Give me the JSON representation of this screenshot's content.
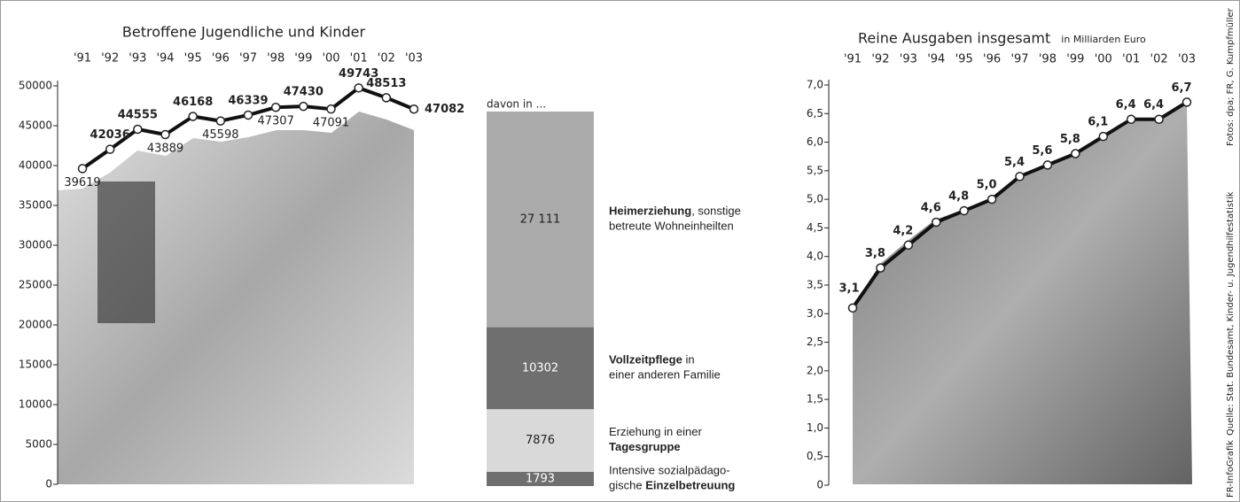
{
  "chart_data": [
    {
      "type": "line",
      "title": "Betroffene Jugendliche und Kinder",
      "categories": [
        "'91",
        "'92",
        "'93",
        "'94",
        "'95",
        "'96",
        "'97",
        "'98",
        "'99",
        "'00",
        "'01",
        "'02",
        "'03"
      ],
      "values": [
        39619,
        42036,
        44555,
        43889,
        46168,
        45598,
        46339,
        47307,
        47430,
        47091,
        49743,
        48513,
        47082
      ],
      "ylim": [
        0,
        50000
      ],
      "yticks": [
        0,
        5000,
        10000,
        15000,
        20000,
        25000,
        30000,
        35000,
        40000,
        45000,
        50000
      ],
      "color": "#111111"
    },
    {
      "type": "stacked-bar",
      "title": "davon in ...",
      "values": [
        27111,
        10302,
        7876,
        1793
      ],
      "value_labels": [
        "27 111",
        "10302",
        "7876",
        "1793"
      ],
      "colors": [
        "#ababab",
        "#6f6f6f",
        "#d9d9d9",
        "#6f6f6f"
      ],
      "labels": [
        [
          [
            {
              "t": "Heimerziehung",
              "b": true
            },
            {
              "t": ", sonstige",
              "b": false
            }
          ],
          [
            {
              "t": "betreute Wohneinheilten",
              "b": false
            }
          ]
        ],
        [
          [
            {
              "t": "Vollzeitpflege",
              "b": true
            },
            {
              "t": " in",
              "b": false
            }
          ],
          [
            {
              "t": "einer anderen Familie",
              "b": false
            }
          ]
        ],
        [
          [
            {
              "t": "Erziehung in einer",
              "b": false
            }
          ],
          [
            {
              "t": "Tagesgruppe",
              "b": true
            }
          ]
        ],
        [
          [
            {
              "t": "Intensive sozialpädago-",
              "b": false
            }
          ],
          [
            {
              "t": "gische ",
              "b": false
            },
            {
              "t": "Einzelbetreuung",
              "b": true
            }
          ]
        ]
      ]
    },
    {
      "type": "line",
      "title": "Reine Ausgaben insgesamt",
      "subtitle": "in Milliarden Euro",
      "categories": [
        "'91",
        "'92",
        "'93",
        "'94",
        "'95",
        "'96",
        "'97",
        "'98",
        "'99",
        "'00",
        "'01",
        "'02",
        "'03"
      ],
      "values": [
        3.1,
        3.8,
        4.2,
        4.6,
        4.8,
        5.0,
        5.4,
        5.6,
        5.8,
        6.1,
        6.4,
        6.4,
        6.7
      ],
      "value_labels": [
        "3,1",
        "3,8",
        "4,2",
        "4,6",
        "4,8",
        "5,0",
        "5,4",
        "5,6",
        "5,8",
        "6,1",
        "6,4",
        "6,4",
        "6,7"
      ],
      "ylim": [
        0,
        7
      ],
      "yticks": [
        0,
        {
          "value": 0.5,
          "label": "0,5"
        },
        {
          "value": 1,
          "label": "1,0"
        },
        {
          "value": 1.5,
          "label": "1,5"
        },
        {
          "value": 2,
          "label": "2,0"
        },
        {
          "value": 2.5,
          "label": "2,5"
        },
        {
          "value": 3,
          "label": "3,0"
        },
        {
          "value": 3.5,
          "label": "3,5"
        },
        {
          "value": 4,
          "label": "4,0"
        },
        {
          "value": 4.5,
          "label": "4,5"
        },
        {
          "value": 5,
          "label": "5,0"
        },
        {
          "value": 5.5,
          "label": "5,5"
        },
        {
          "value": 6,
          "label": "6,0"
        },
        {
          "value": 6.5,
          "label": "6,5"
        },
        {
          "value": 7,
          "label": "7,0"
        }
      ],
      "color": "#111111"
    }
  ],
  "credits": {
    "graphic": "FR-InfoGrafik",
    "source": "Quelle: Stat. Bundesamt, Kinder- u. Jugendhilfestatistik",
    "photos": "Fotos: dpa; FR, G. Kumpfmüller"
  }
}
